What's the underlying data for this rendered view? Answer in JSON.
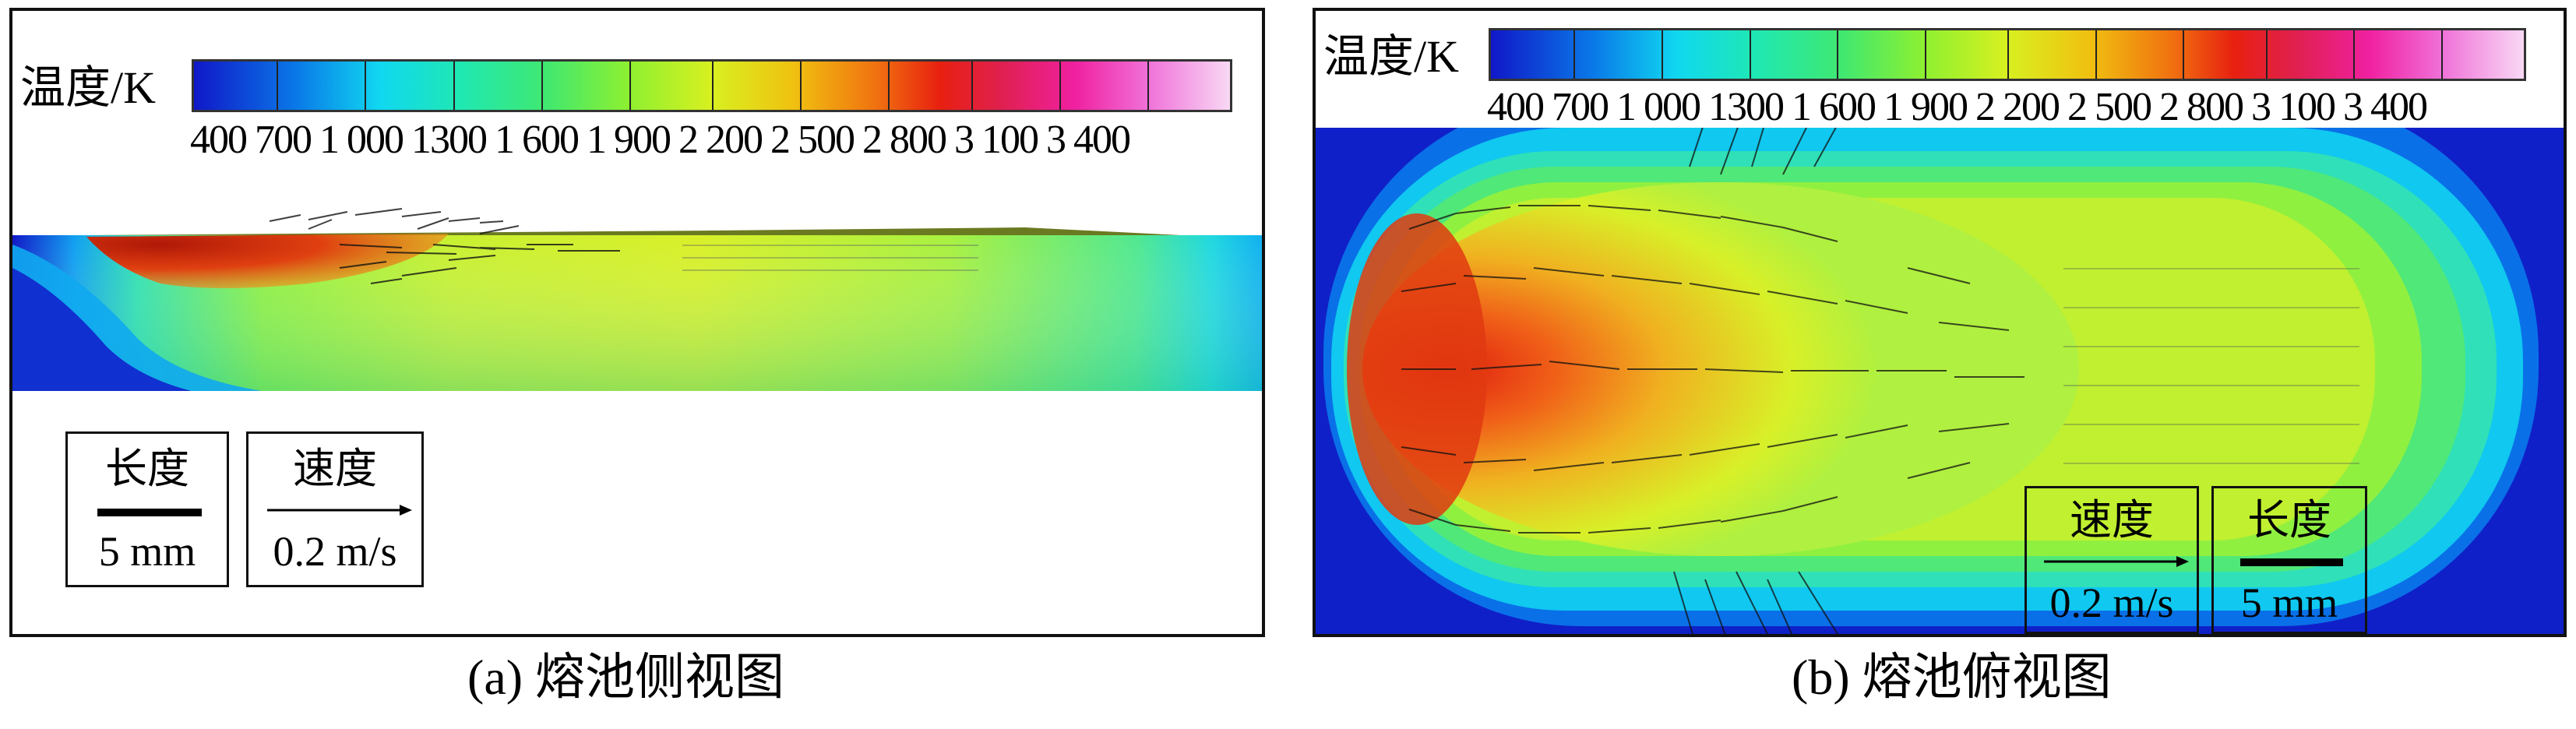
{
  "colorbar": {
    "title": "温度/K",
    "tick_labels": "400 700 1 000 1300 1 600 1 900 2 200 2 500 2 800 3 100 3 400"
  },
  "legend": {
    "length_label": "长度",
    "length_value": "5 mm",
    "speed_label": "速度",
    "speed_value": "0.2 m/s"
  },
  "panels": {
    "a": {
      "caption": "(a) 熔池侧视图"
    },
    "b": {
      "caption": "(b) 熔池俯视图"
    }
  },
  "colors": {
    "cold": "#1018c8",
    "cyan": "#10d8f0",
    "green": "#40e870",
    "yellow": "#d8f020",
    "hot": "#e82010"
  }
}
